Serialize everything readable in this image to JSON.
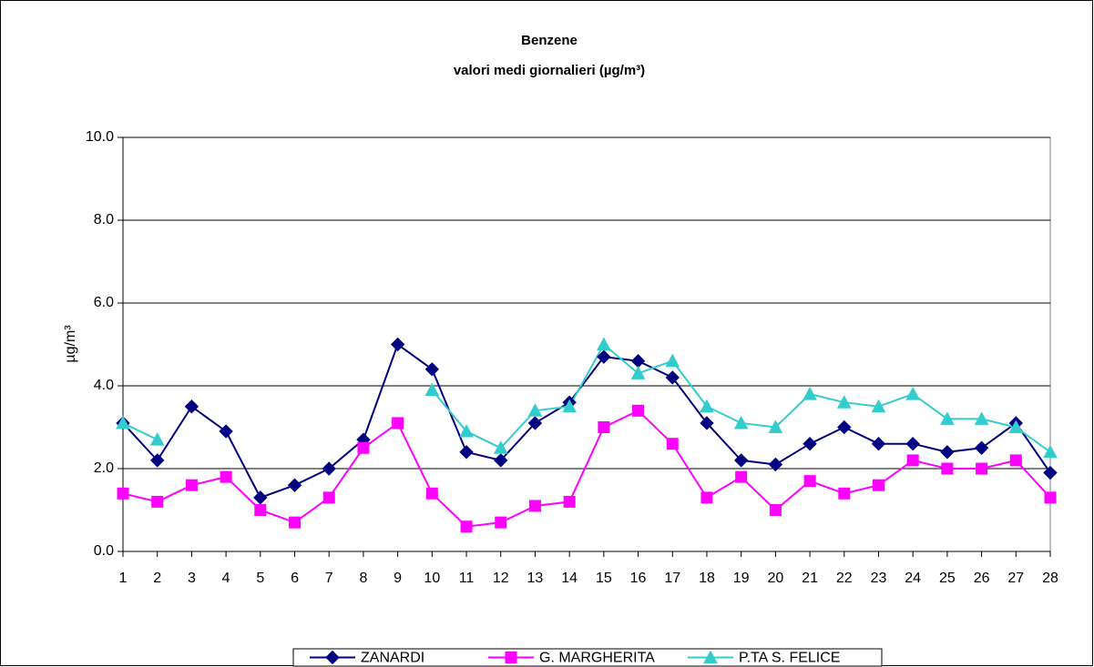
{
  "chart_data": {
    "type": "line",
    "title": "Benzene",
    "subtitle": "valori medi giornalieri (µg/m³)",
    "y_label": "µg/m³",
    "categories": [
      "1",
      "2",
      "3",
      "4",
      "5",
      "6",
      "7",
      "8",
      "9",
      "10",
      "11",
      "12",
      "13",
      "14",
      "15",
      "16",
      "17",
      "18",
      "19",
      "20",
      "21",
      "22",
      "23",
      "24",
      "25",
      "26",
      "27",
      "28"
    ],
    "series": [
      {
        "name": "ZANARDI",
        "color": "#000080",
        "marker": "diamond",
        "values": [
          3.1,
          2.2,
          3.5,
          2.9,
          1.3,
          1.6,
          2.0,
          2.7,
          5.0,
          4.4,
          2.4,
          2.2,
          3.1,
          3.6,
          4.7,
          4.6,
          4.2,
          3.1,
          2.2,
          2.1,
          2.6,
          3.0,
          2.6,
          2.6,
          2.4,
          2.5,
          3.1,
          1.9
        ]
      },
      {
        "name": "G. MARGHERITA",
        "color": "#ff00ff",
        "marker": "square",
        "values": [
          1.4,
          1.2,
          1.6,
          1.8,
          1.0,
          0.7,
          1.3,
          2.5,
          3.1,
          1.4,
          0.6,
          0.7,
          1.1,
          1.2,
          3.0,
          3.4,
          2.6,
          1.3,
          1.8,
          1.0,
          1.7,
          1.4,
          1.6,
          2.2,
          2.0,
          2.0,
          2.2,
          1.3
        ]
      },
      {
        "name": "P.TA S. FELICE",
        "color": "#33cccc",
        "marker": "triangle",
        "values": [
          3.1,
          2.7,
          null,
          null,
          null,
          null,
          null,
          null,
          null,
          3.9,
          2.9,
          2.5,
          3.4,
          3.5,
          5.0,
          4.3,
          4.6,
          3.5,
          3.1,
          3.0,
          3.8,
          3.6,
          3.5,
          3.8,
          3.2,
          3.2,
          3.0,
          2.4
        ]
      }
    ],
    "ylim": [
      0,
      10
    ],
    "yticks": [
      {
        "value": 0,
        "label": "0.0"
      },
      {
        "value": 2,
        "label": "2.0"
      },
      {
        "value": 4,
        "label": "4.0"
      },
      {
        "value": 6,
        "label": "6.0"
      },
      {
        "value": 8,
        "label": "8.0"
      },
      {
        "value": 10,
        "label": "10.0"
      }
    ],
    "grid": true,
    "legend": "bottom"
  }
}
